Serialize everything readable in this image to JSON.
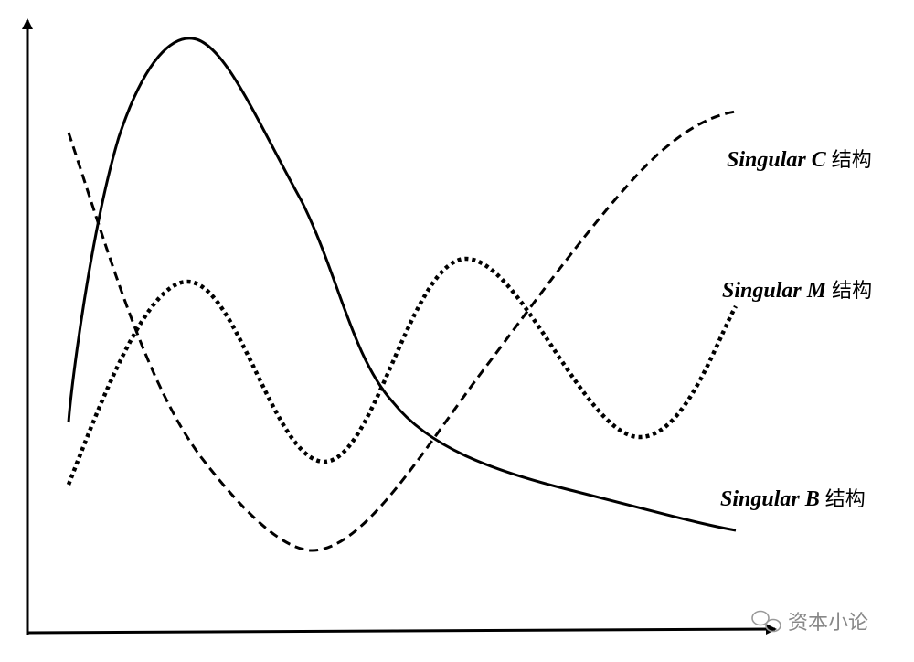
{
  "curves": [
    {
      "name": "Singular C",
      "suffix": "结构"
    },
    {
      "name": "Singular M",
      "suffix": "结构"
    },
    {
      "name": "Singular B",
      "suffix": "结构"
    }
  ],
  "watermark": "资本小论"
}
